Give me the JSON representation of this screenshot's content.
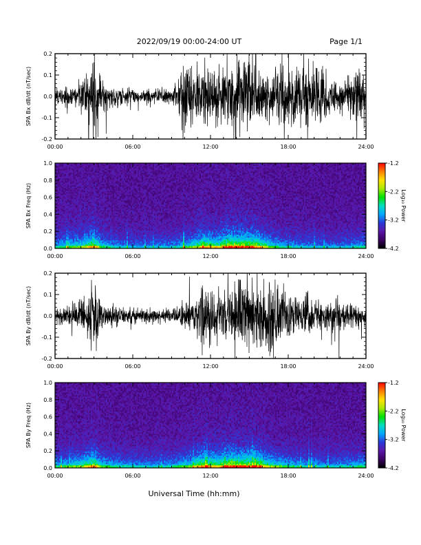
{
  "header": {
    "title": "2022/09/19  00:00-24:00 UT",
    "page": "Page 1/1"
  },
  "xlabel": "Universal Time (hh:mm)",
  "colorbar": {
    "label": "Log₁₀ Power",
    "ticks": [
      "-1.2",
      "-2.2",
      "-3.2",
      "-4.2"
    ],
    "range": [
      -4.2,
      -1.2
    ],
    "colors": [
      "#000000",
      "#3a0060",
      "#5a16a8",
      "#2b3ad8",
      "#00a8ff",
      "#00ddc0",
      "#00e000",
      "#a8e800",
      "#ffe000",
      "#ff8000",
      "#ff0000"
    ]
  },
  "chart_data": [
    {
      "type": "line",
      "ylabel": "SPA Bx dB/dt (nT/sec)",
      "xlim": [
        0,
        24
      ],
      "ylim": [
        -0.2,
        0.2
      ],
      "x_ticks": [
        "00:00",
        "06:00",
        "12:00",
        "18:00",
        "24:00"
      ],
      "y_ticks": [
        "0.2",
        "0.1",
        "0.0",
        "-0.1",
        "-0.2"
      ],
      "envelope": {
        "hours": [
          0,
          1,
          2,
          2.8,
          3.3,
          3.6,
          4.5,
          6,
          7.5,
          9,
          9.5,
          9.9,
          10.5,
          11.5,
          12.5,
          13.5,
          14.5,
          15.5,
          16.5,
          17.5,
          18.5,
          19.5,
          20.5,
          21.5,
          22.5,
          23.3,
          24
        ],
        "amplitude": [
          0.04,
          0.06,
          0.09,
          0.2,
          0.2,
          0.08,
          0.06,
          0.05,
          0.04,
          0.05,
          0.08,
          0.2,
          0.2,
          0.15,
          0.2,
          0.18,
          0.2,
          0.2,
          0.12,
          0.2,
          0.18,
          0.2,
          0.16,
          0.1,
          0.09,
          0.2,
          0.05
        ]
      }
    },
    {
      "type": "heatmap",
      "ylabel": "SPA Bx Freq (Hz)",
      "xlim": [
        0,
        24
      ],
      "ylim": [
        0,
        1
      ],
      "x_ticks": [
        "00:00",
        "06:00",
        "12:00",
        "18:00",
        "24:00"
      ],
      "y_ticks": [
        "1.0",
        "0.8",
        "0.6",
        "0.4",
        "0.2",
        "0.0"
      ],
      "activity": {
        "hours": [
          0,
          2,
          3,
          3.6,
          5,
          7,
          9,
          10.5,
          11.5,
          12.5,
          13.5,
          14.5,
          15.5,
          16.5,
          17.5,
          19,
          21,
          23,
          24
        ],
        "level": [
          0.35,
          0.5,
          0.75,
          0.4,
          0.3,
          0.25,
          0.3,
          0.45,
          0.7,
          0.6,
          0.85,
          0.8,
          0.75,
          0.5,
          0.35,
          0.3,
          0.25,
          0.3,
          0.35
        ]
      }
    },
    {
      "type": "line",
      "ylabel": "SPA By dB/dt (nT/sec)",
      "xlim": [
        0,
        24
      ],
      "ylim": [
        -0.2,
        0.2
      ],
      "x_ticks": [
        "00:00",
        "06:00",
        "12:00",
        "18:00",
        "24:00"
      ],
      "y_ticks": [
        "0.2",
        "0.1",
        "0.0",
        "-0.1",
        "-0.2"
      ],
      "envelope": {
        "hours": [
          0,
          1,
          2,
          2.8,
          3.3,
          3.6,
          4.5,
          6,
          7.5,
          9,
          9.5,
          10.5,
          11.5,
          12.5,
          13.5,
          14.5,
          15.5,
          16.5,
          17.5,
          18.5,
          19.5,
          20.5,
          21.5,
          22.5,
          23.5,
          24
        ],
        "amplitude": [
          0.04,
          0.06,
          0.09,
          0.2,
          0.2,
          0.07,
          0.05,
          0.04,
          0.04,
          0.04,
          0.07,
          0.09,
          0.2,
          0.13,
          0.16,
          0.2,
          0.2,
          0.2,
          0.15,
          0.12,
          0.1,
          0.09,
          0.08,
          0.08,
          0.07,
          0.05
        ]
      }
    },
    {
      "type": "heatmap",
      "ylabel": "SPA By Freq (Hz)",
      "xlim": [
        0,
        24
      ],
      "ylim": [
        0,
        1
      ],
      "x_ticks": [
        "00:00",
        "06:00",
        "12:00",
        "18:00",
        "24:00"
      ],
      "y_ticks": [
        "1.0",
        "0.8",
        "0.6",
        "0.4",
        "0.2",
        "0.0"
      ],
      "activity": {
        "hours": [
          0,
          2,
          3,
          3.6,
          5,
          7,
          9,
          10.5,
          11.5,
          12.5,
          13.5,
          14.5,
          15.5,
          16.5,
          17.5,
          19,
          21,
          23,
          24
        ],
        "level": [
          0.35,
          0.5,
          0.75,
          0.45,
          0.35,
          0.3,
          0.35,
          0.5,
          0.75,
          0.65,
          0.85,
          0.8,
          0.8,
          0.55,
          0.45,
          0.35,
          0.3,
          0.35,
          0.4
        ]
      }
    }
  ]
}
